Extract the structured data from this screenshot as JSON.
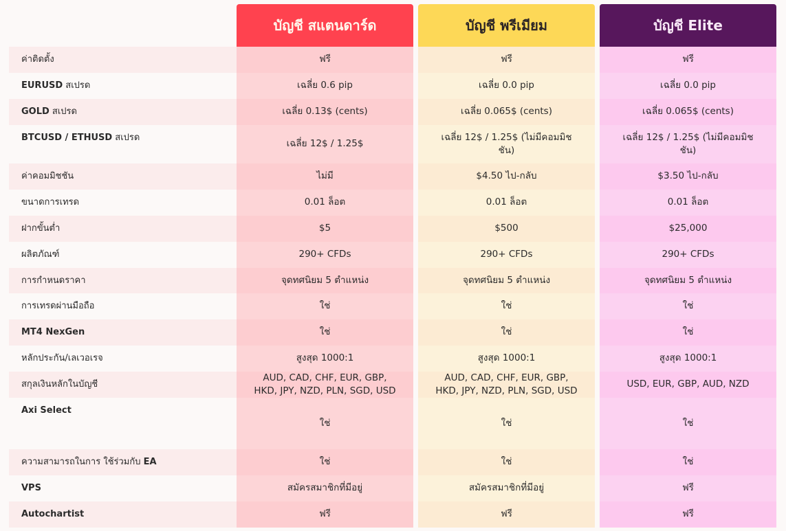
{
  "header": {
    "columns": [
      {
        "title": "บัญชี สแตนดาร์ด",
        "color": "#ff424f"
      },
      {
        "title": "บัญชี พรีเมียม",
        "color": "#fdd857"
      },
      {
        "title": "บัญชี Elite",
        "color": "#57175c"
      }
    ]
  },
  "rows": [
    {
      "label": "ค่าติดตั้ง",
      "standard": "ฟรี",
      "premium": "ฟรี",
      "elite": "ฟรี"
    },
    {
      "label_bold": "EURUSD",
      "label": " สเปรด",
      "standard": "เฉลี่ย 0.6 pip",
      "premium": "เฉลี่ย 0.0 pip",
      "elite": "เฉลี่ย 0.0 pip"
    },
    {
      "label_bold": "GOLD",
      "label": " สเปรด",
      "standard": "เฉลี่ย 0.13$ (cents)",
      "premium": "เฉลี่ย 0.065$ (cents)",
      "elite": "เฉลี่ย 0.065$ (cents)"
    },
    {
      "label_bold": "BTCUSD / ETHUSD",
      "label": " สเปรด",
      "standard": "เฉลี่ย 12$ / 1.25$",
      "premium": "เฉลี่ย 12$ / 1.25$ (ไม่มีคอมมิชชัน)",
      "elite": "เฉลี่ย 12$ / 1.25$ (ไม่มีคอมมิชชัน)"
    },
    {
      "label": "ค่าคอมมิชชัน",
      "standard": "ไม่มี",
      "premium": "$4.50 ไป-กลับ",
      "elite": "$3.50 ไป-กลับ"
    },
    {
      "label": "ขนาดการเทรด",
      "standard": "0.01 ล็อต",
      "premium": "0.01 ล็อต",
      "elite": "0.01 ล็อต"
    },
    {
      "label": "ฝากขั้นต่ำ",
      "standard": "$5",
      "premium": "$500",
      "elite": "$25,000"
    },
    {
      "label": "ผลิตภัณฑ์",
      "standard": "290+ CFDs",
      "premium": "290+ CFDs",
      "elite": "290+ CFDs"
    },
    {
      "label": "การกำหนดราคา",
      "standard": "จุดทศนิยม 5 ตำแหน่ง",
      "premium": "จุดทศนิยม 5 ตำแหน่ง",
      "elite": "จุดทศนิยม 5 ตำแหน่ง"
    },
    {
      "label": "การเทรดผ่านมือถือ",
      "standard": "ใช่",
      "premium": "ใช่",
      "elite": "ใช่"
    },
    {
      "label_bold": "MT4 NexGen",
      "standard": "ใช่",
      "premium": "ใช่",
      "elite": "ใช่"
    },
    {
      "label": "หลักประกัน/เลเวอเรจ",
      "standard": "สูงสุด 1000:1",
      "premium": "สูงสุด 1000:1",
      "elite": "สูงสุด 1000:1"
    },
    {
      "label": "สกุลเงินหลักในบัญชี",
      "standard": "AUD, CAD, CHF, EUR, GBP, HKD, JPY, NZD, PLN, SGD, USD",
      "premium": "AUD, CAD, CHF, EUR, GBP, HKD, JPY, NZD, PLN, SGD, USD",
      "elite": "USD, EUR, GBP, AUD, NZD"
    },
    {
      "label_bold": "Axi Select",
      "standard": "ใช่",
      "premium": "ใช่",
      "elite": "ใช่"
    },
    {
      "label": "ความสามารถในการ ใช้ร่วมกับ ",
      "label_bold_after": "EA",
      "standard": "ใช่",
      "premium": "ใช่",
      "elite": "ใช่"
    },
    {
      "label_bold": "VPS",
      "standard": "สมัครสมาชิกที่มีอยู่",
      "premium": "สมัครสมาชิกที่มีอยู่",
      "elite": "ฟรี"
    },
    {
      "label_bold": "Autochartist",
      "standard": "ฟรี",
      "premium": "ฟรี",
      "elite": "ฟรี"
    }
  ]
}
